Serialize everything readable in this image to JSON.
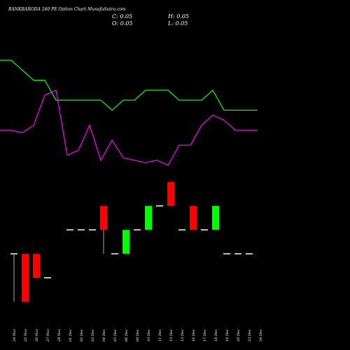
{
  "header": {
    "title": "BANKBARODA 240  PE Option  Chart MunafaSutra.com",
    "c_label": "C: 0.05",
    "h_label": "H: 0.05",
    "o_label": "O: 0.05",
    "l_label": "L: 0.05"
  },
  "chart_data": {
    "type": "candlestick",
    "categories": [
      "24 Nov",
      "25 Nov",
      "26 Nov",
      "27 Nov",
      "28 Nov",
      "29 Nov",
      "01 Dec",
      "02 Dec",
      "03 Dec",
      "04 Dec",
      "05 Dec",
      "06 Dec",
      "09 Dec",
      "10 Dec",
      "11 Dec",
      "12 Dec",
      "13 Dec",
      "16 Dec",
      "17 Dec",
      "18 Dec",
      "19 Dec",
      "20 Dec",
      "23 Dec",
      "24 Dec"
    ],
    "candles": [
      {
        "open": 0.045,
        "close": 0.045,
        "high": 0.045,
        "low": 0.015,
        "color": "#ffffff"
      },
      {
        "open": 0.015,
        "close": 0.045,
        "high": 0.045,
        "low": 0.015,
        "color": "#ff0000"
      },
      {
        "open": 0.045,
        "close": 0.03,
        "high": 0.045,
        "low": 0.03,
        "color": "#ff0000"
      },
      {
        "open": 0.03,
        "close": 0.03,
        "high": 0.03,
        "low": 0.03,
        "color": "#ffffff"
      },
      null,
      {
        "open": 0.06,
        "close": 0.06,
        "high": 0.06,
        "low": 0.06,
        "color": "#ffffff"
      },
      {
        "open": 0.06,
        "close": 0.06,
        "high": 0.06,
        "low": 0.06,
        "color": "#ffffff"
      },
      {
        "open": 0.06,
        "close": 0.06,
        "high": 0.06,
        "low": 0.06,
        "color": "#ffffff"
      },
      {
        "open": 0.075,
        "close": 0.06,
        "high": 0.075,
        "low": 0.045,
        "color": "#ff0000"
      },
      {
        "open": 0.045,
        "close": 0.045,
        "high": 0.045,
        "low": 0.045,
        "color": "#ffffff"
      },
      {
        "open": 0.045,
        "close": 0.06,
        "high": 0.06,
        "low": 0.045,
        "color": "#00ff00"
      },
      {
        "open": 0.06,
        "close": 0.06,
        "high": 0.06,
        "low": 0.06,
        "color": "#ffffff"
      },
      {
        "open": 0.06,
        "close": 0.075,
        "high": 0.075,
        "low": 0.06,
        "color": "#00ff00"
      },
      {
        "open": 0.075,
        "close": 0.075,
        "high": 0.075,
        "low": 0.075,
        "color": "#ffffff"
      },
      {
        "open": 0.09,
        "close": 0.075,
        "high": 0.09,
        "low": 0.075,
        "color": "#ff0000"
      },
      {
        "open": 0.06,
        "close": 0.06,
        "high": 0.06,
        "low": 0.06,
        "color": "#ffffff"
      },
      {
        "open": 0.075,
        "close": 0.06,
        "high": 0.075,
        "low": 0.06,
        "color": "#ff0000"
      },
      {
        "open": 0.06,
        "close": 0.06,
        "high": 0.06,
        "low": 0.06,
        "color": "#ffffff"
      },
      {
        "open": 0.06,
        "close": 0.075,
        "high": 0.075,
        "low": 0.06,
        "color": "#00ff00"
      },
      {
        "open": 0.045,
        "close": 0.045,
        "high": 0.045,
        "low": 0.045,
        "color": "#ffffff"
      },
      {
        "open": 0.045,
        "close": 0.045,
        "high": 0.045,
        "low": 0.045,
        "color": "#ffffff"
      },
      {
        "open": 0.045,
        "close": 0.045,
        "high": 0.045,
        "low": 0.045,
        "color": "#ffffff"
      },
      null,
      null
    ],
    "series": [
      {
        "color": "#00ff00",
        "values": [
          0.28,
          0.28,
          0.26,
          0.24,
          0.24,
          0.2,
          0.2,
          0.2,
          0.2,
          0.2,
          0.18,
          0.2,
          0.2,
          0.22,
          0.22,
          0.22,
          0.2,
          0.2,
          0.2,
          0.22,
          0.18,
          0.18,
          0.18,
          0.18
        ]
      },
      {
        "color": "#ff00ff",
        "values": [
          0.14,
          0.14,
          0.135,
          0.15,
          0.21,
          0.22,
          0.09,
          0.1,
          0.15,
          0.08,
          0.12,
          0.085,
          0.08,
          0.075,
          0.08,
          0.07,
          0.11,
          0.11,
          0.15,
          0.17,
          0.16,
          0.14,
          0.14,
          0.14
        ]
      }
    ],
    "x_tick_labels": [
      "24 Nov",
      "25 Nov",
      "26 Nov",
      "27 Nov",
      "28 Nov",
      "01 Dec",
      "02 Dec",
      "03 Dec",
      "04 Dec",
      "05 Dec",
      "06 Dec",
      "09 Dec",
      "10 Dec",
      "11 Dec",
      "12 Dec",
      "13 Dec",
      "16 Dec",
      "17 Dec",
      "18 Dec",
      "19 Dec",
      "20 Dec",
      "23 Dec",
      "24 Dec"
    ],
    "grid": false,
    "background": "#000000"
  }
}
